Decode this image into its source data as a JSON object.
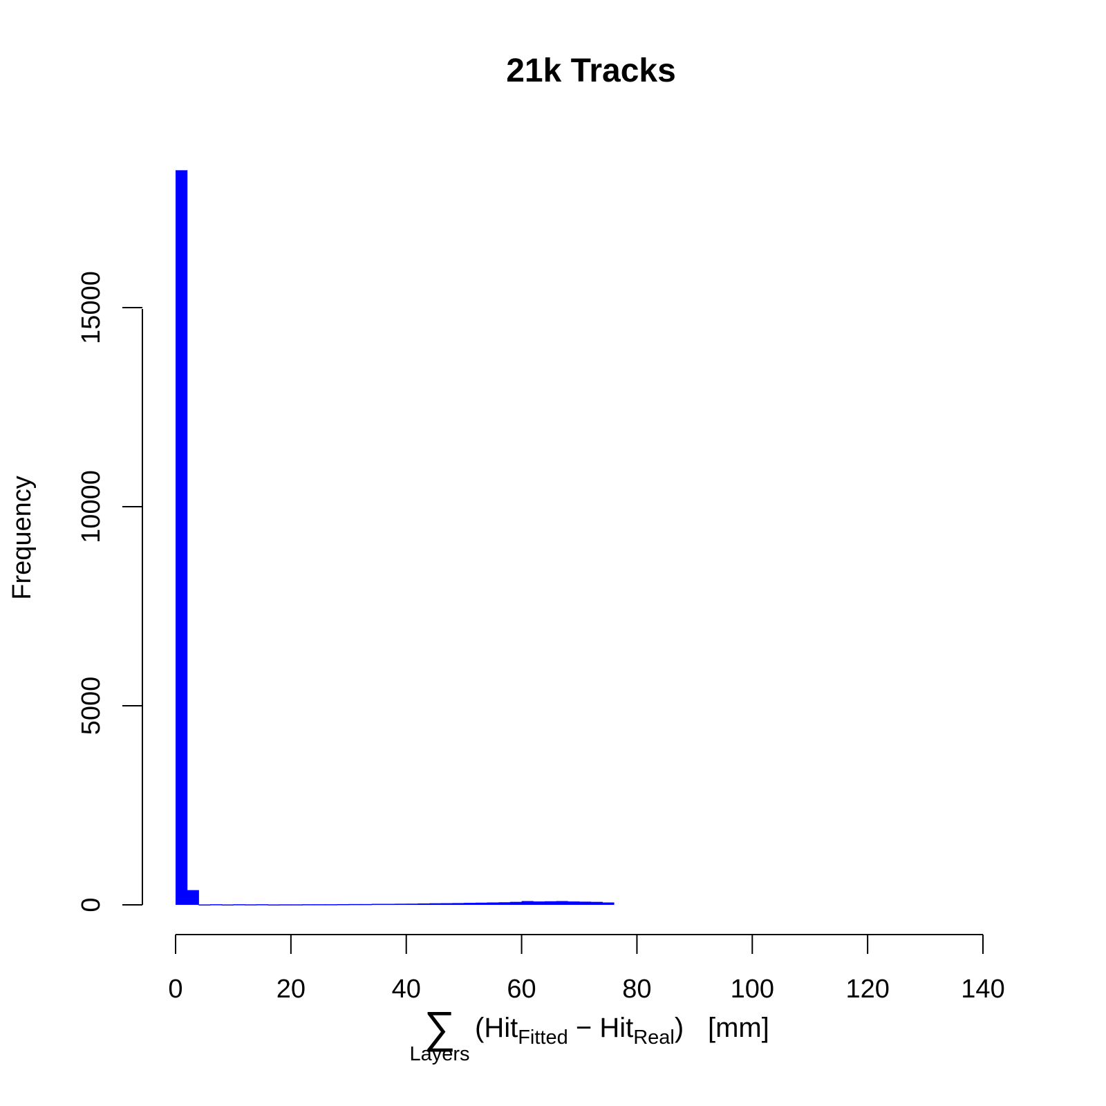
{
  "chart_data": {
    "type": "bar",
    "title": "21k Tracks",
    "ylabel": "Frequency",
    "xlabel": {
      "sum_symbol": "∑",
      "sum_subscript": "Layers",
      "open_paren": "(Hit",
      "fitted_subscript": "Fitted",
      "minus": " − Hit",
      "real_subscript": "Real",
      "close_paren": ")",
      "unit": "[mm]"
    },
    "xlim": [
      0,
      140
    ],
    "ylim": [
      0,
      18500
    ],
    "x_ticks": [
      0,
      20,
      40,
      60,
      80,
      100,
      120,
      140
    ],
    "y_ticks": [
      0,
      5000,
      10000,
      15000
    ],
    "bar_color": "#0000ff",
    "bin_width": 2,
    "bins": [
      {
        "x0": 0,
        "x1": 2,
        "count": 18450
      },
      {
        "x0": 2,
        "x1": 4,
        "count": 370
      },
      {
        "x0": 4,
        "x1": 6,
        "count": 10
      },
      {
        "x0": 6,
        "x1": 8,
        "count": 15
      },
      {
        "x0": 8,
        "x1": 10,
        "count": 10
      },
      {
        "x0": 10,
        "x1": 12,
        "count": 15
      },
      {
        "x0": 12,
        "x1": 14,
        "count": 12
      },
      {
        "x0": 14,
        "x1": 16,
        "count": 15
      },
      {
        "x0": 16,
        "x1": 18,
        "count": 10
      },
      {
        "x0": 18,
        "x1": 20,
        "count": 12
      },
      {
        "x0": 20,
        "x1": 22,
        "count": 12
      },
      {
        "x0": 22,
        "x1": 24,
        "count": 15
      },
      {
        "x0": 24,
        "x1": 26,
        "count": 15
      },
      {
        "x0": 26,
        "x1": 28,
        "count": 15
      },
      {
        "x0": 28,
        "x1": 30,
        "count": 18
      },
      {
        "x0": 30,
        "x1": 32,
        "count": 20
      },
      {
        "x0": 32,
        "x1": 34,
        "count": 20
      },
      {
        "x0": 34,
        "x1": 36,
        "count": 25
      },
      {
        "x0": 36,
        "x1": 38,
        "count": 25
      },
      {
        "x0": 38,
        "x1": 40,
        "count": 28
      },
      {
        "x0": 40,
        "x1": 42,
        "count": 30
      },
      {
        "x0": 42,
        "x1": 44,
        "count": 35
      },
      {
        "x0": 44,
        "x1": 46,
        "count": 40
      },
      {
        "x0": 46,
        "x1": 48,
        "count": 42
      },
      {
        "x0": 48,
        "x1": 50,
        "count": 45
      },
      {
        "x0": 50,
        "x1": 52,
        "count": 50
      },
      {
        "x0": 52,
        "x1": 54,
        "count": 55
      },
      {
        "x0": 54,
        "x1": 56,
        "count": 60
      },
      {
        "x0": 56,
        "x1": 58,
        "count": 65
      },
      {
        "x0": 58,
        "x1": 60,
        "count": 75
      },
      {
        "x0": 60,
        "x1": 62,
        "count": 95
      },
      {
        "x0": 62,
        "x1": 64,
        "count": 85
      },
      {
        "x0": 64,
        "x1": 66,
        "count": 90
      },
      {
        "x0": 66,
        "x1": 68,
        "count": 95
      },
      {
        "x0": 68,
        "x1": 70,
        "count": 85
      },
      {
        "x0": 70,
        "x1": 72,
        "count": 80
      },
      {
        "x0": 72,
        "x1": 74,
        "count": 75
      },
      {
        "x0": 74,
        "x1": 76,
        "count": 60
      }
    ]
  }
}
